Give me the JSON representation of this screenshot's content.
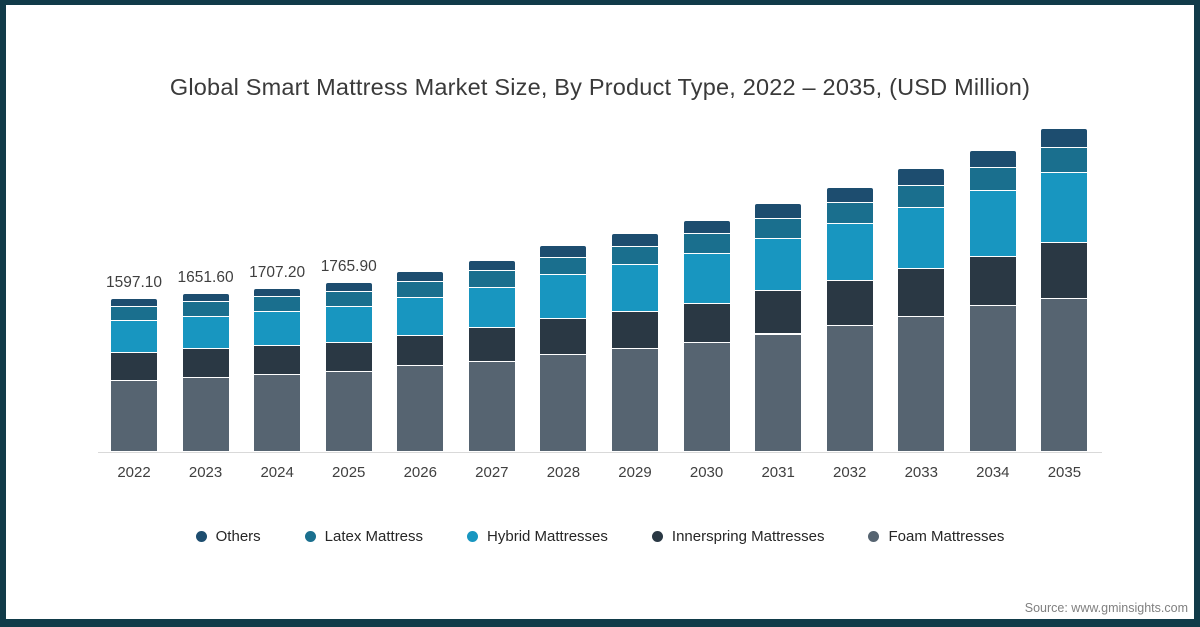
{
  "frame": {
    "border_color": "#113b49",
    "background": "#ffffff"
  },
  "source": "Source: www.gminsights.com",
  "chart_data": {
    "type": "bar",
    "stacked": true,
    "title": "Global Smart Mattress Market Size, By Product Type, 2022 – 2035, (USD Million)",
    "xlabel": "",
    "ylabel": "",
    "ylim": [
      0,
      3500
    ],
    "grid": false,
    "legend_position": "bottom",
    "categories": [
      "2022",
      "2023",
      "2024",
      "2025",
      "2026",
      "2027",
      "2028",
      "2029",
      "2030",
      "2031",
      "2032",
      "2033",
      "2034",
      "2035"
    ],
    "data_labels": [
      "1597.10",
      "1651.60",
      "1707.20",
      "1765.90",
      "",
      "",
      "",
      "",
      "",
      "",
      "",
      "",
      "",
      ""
    ],
    "series": [
      {
        "name": "Others",
        "color": "#1d4d6f",
        "values": [
          80,
          85,
          90,
          95,
          100,
          112,
          126,
          132,
          138,
          150,
          160,
          172,
          178,
          196
        ]
      },
      {
        "name": "Latex Mattress",
        "color": "#1a6f8e",
        "values": [
          147,
          150,
          153,
          157,
          165,
          172,
          180,
          192,
          208,
          210,
          213,
          228,
          250,
          267
        ]
      },
      {
        "name": "Hybrid Mattresses",
        "color": "#1896c0",
        "values": [
          336,
          344,
          355,
          370,
          400,
          424,
          458,
          494,
          522,
          545,
          598,
          642,
          688,
          726
        ]
      },
      {
        "name": "Innerspring Mattresses",
        "color": "#2a3844",
        "values": [
          296,
          302,
          306,
          310,
          318,
          350,
          375,
          385,
          415,
          455,
          477,
          505,
          512,
          590
        ]
      },
      {
        "name": "Foam Mattresses",
        "color": "#566471",
        "values": [
          738.1,
          770.6,
          803.2,
          833.9,
          898,
          944,
          1014,
          1078,
          1138,
          1229,
          1315,
          1409,
          1525,
          1600
        ]
      }
    ]
  }
}
